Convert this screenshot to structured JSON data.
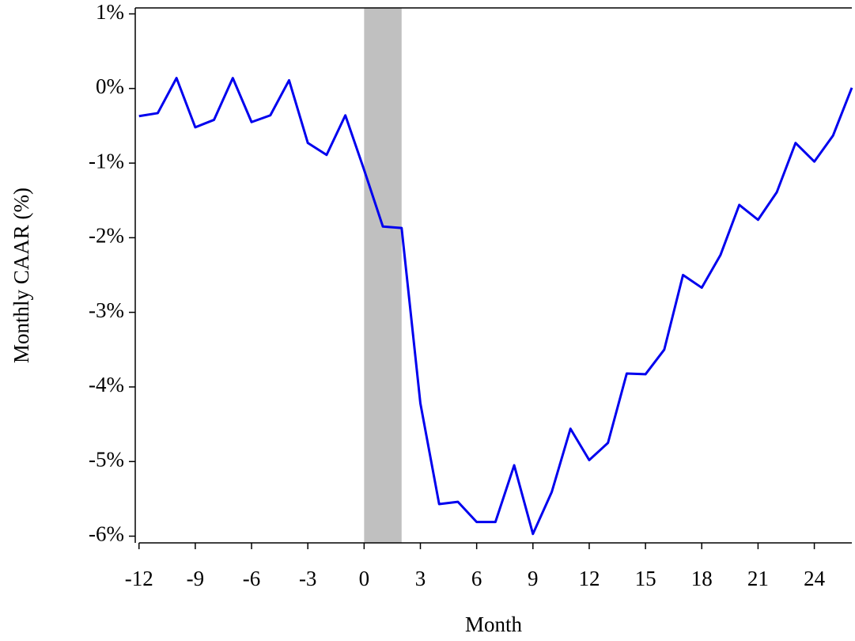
{
  "chart_data": {
    "type": "line",
    "x_label": "Month",
    "y_label": "Monthly CAAR (%)",
    "x": [
      -12,
      -11,
      -10,
      -9,
      -8,
      -7,
      -6,
      -5,
      -4,
      -3,
      -2,
      -1,
      0,
      1,
      2,
      3,
      4,
      5,
      6,
      7,
      8,
      9,
      10,
      11,
      12,
      13,
      14,
      15,
      16,
      17,
      18,
      19,
      20,
      21,
      22,
      23,
      24,
      25,
      26
    ],
    "series": [
      {
        "color": "#0000ee",
        "values": [
          -0.37,
          -0.33,
          0.14,
          -0.52,
          -0.42,
          0.14,
          -0.45,
          -0.36,
          0.11,
          -0.73,
          -0.89,
          -0.36,
          -1.09,
          -1.85,
          -1.87,
          -4.22,
          -5.57,
          -5.54,
          -5.81,
          -5.81,
          -5.05,
          -5.97,
          -5.41,
          -4.56,
          -4.98,
          -4.75,
          -3.82,
          -3.83,
          -3.5,
          -2.5,
          -2.67,
          -2.23,
          -1.56,
          -1.76,
          -1.39,
          -0.73,
          -0.98,
          -0.63,
          0.01
        ]
      }
    ],
    "shaded_region": [
      0,
      2
    ],
    "shaded_color": "#c0c0c0",
    "xlim": [
      -12.2,
      26
    ],
    "ylim": [
      -6.09,
      1.08
    ],
    "xticks": [
      -12,
      -9,
      -6,
      -3,
      0,
      3,
      6,
      9,
      12,
      15,
      18,
      21,
      24
    ],
    "yticks": [
      {
        "value": 1,
        "label": "1%"
      },
      {
        "value": 0,
        "label": "0%"
      },
      {
        "value": -1,
        "label": "-1%"
      },
      {
        "value": -2,
        "label": "-2%"
      },
      {
        "value": -3,
        "label": "-3%"
      },
      {
        "value": -4,
        "label": "-4%"
      },
      {
        "value": -5,
        "label": "-5%"
      },
      {
        "value": -6,
        "label": "-6%"
      }
    ]
  }
}
